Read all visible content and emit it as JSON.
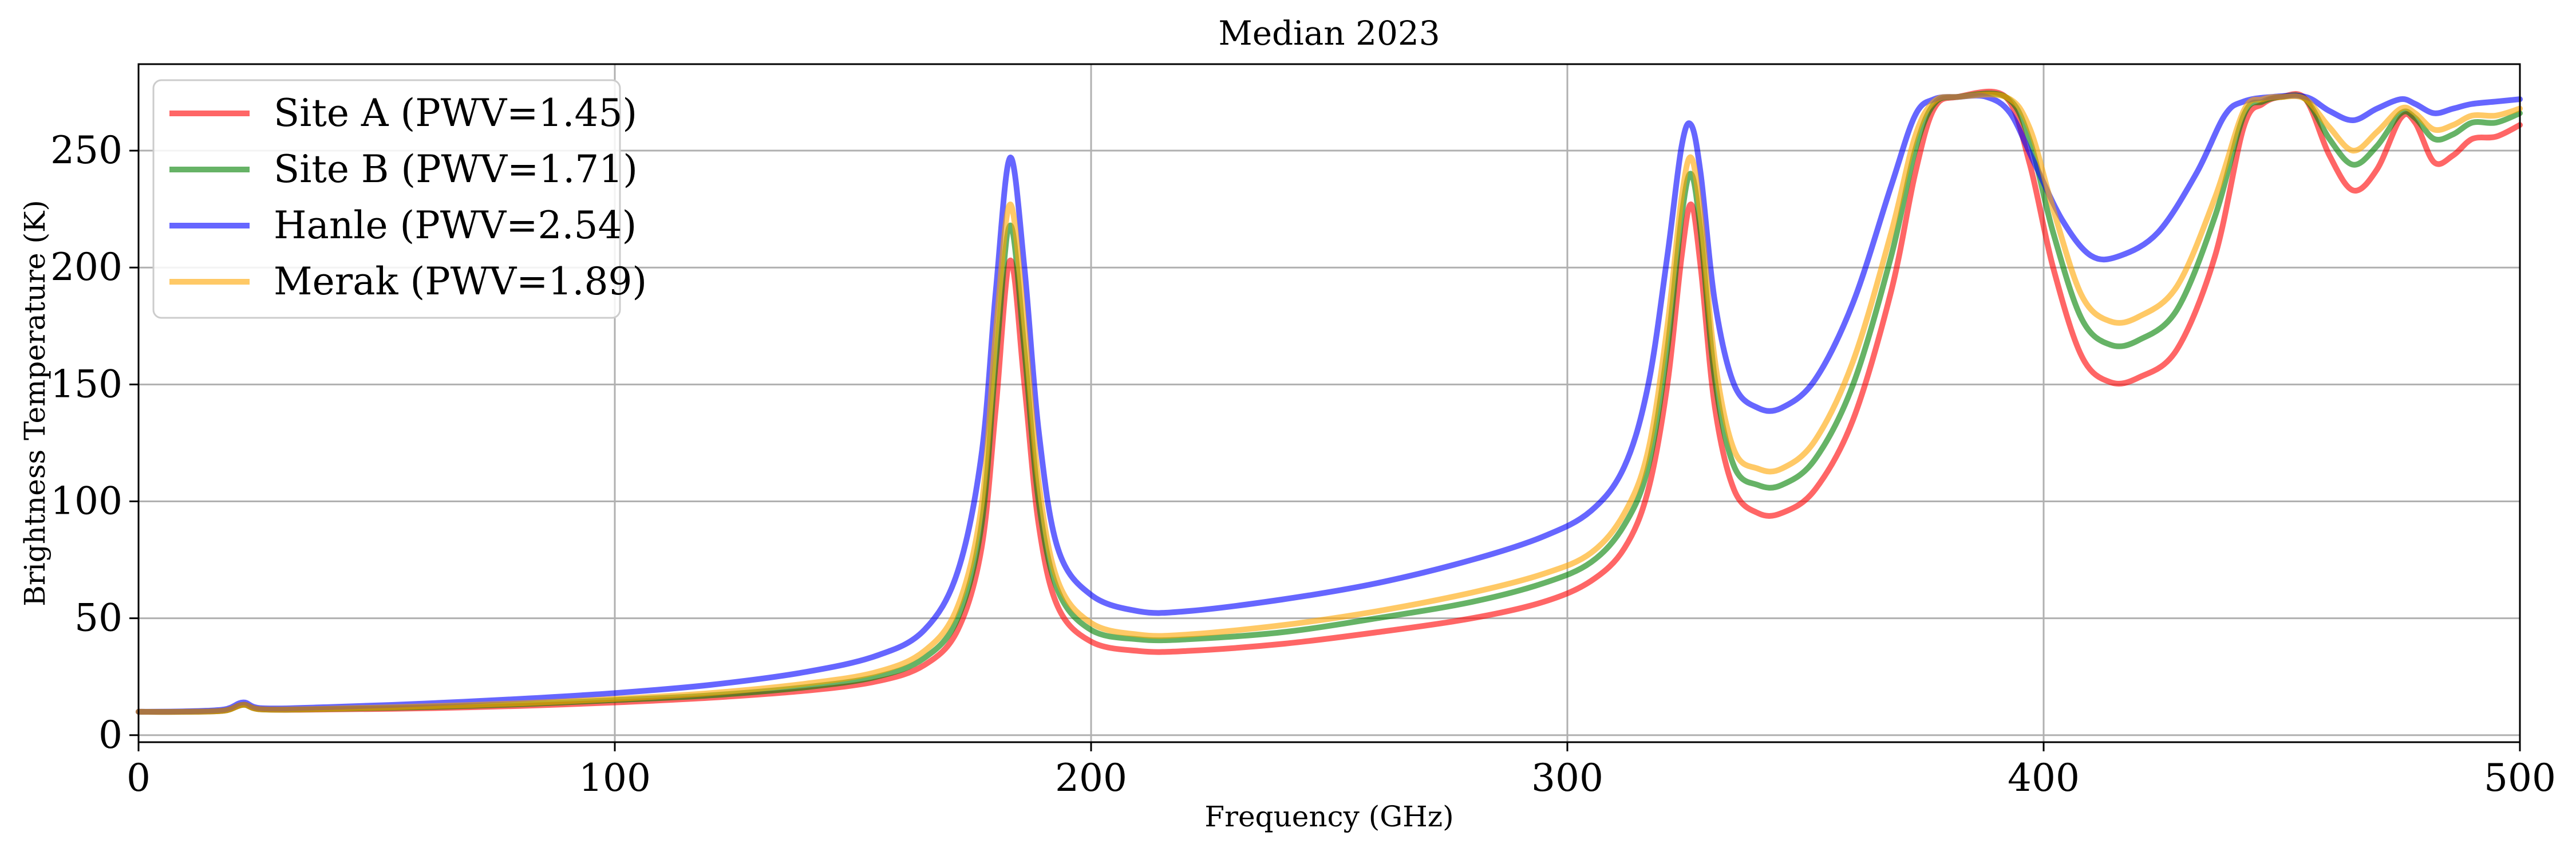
{
  "chart_data": {
    "type": "line",
    "title": "Median 2023",
    "xlabel": "Frequency (GHz)",
    "ylabel": "Brightness Temperature (K)",
    "xlim": [
      0,
      500
    ],
    "ylim": [
      -3,
      287
    ],
    "xticks": [
      0,
      100,
      200,
      300,
      400,
      500
    ],
    "yticks": [
      0,
      50,
      100,
      150,
      200,
      250
    ],
    "grid": true,
    "legend_position": "top-left",
    "series": [
      {
        "name": "Site A (PWV=1.45)",
        "color": "#ff0000",
        "points": [
          [
            0,
            10
          ],
          [
            10,
            10
          ],
          [
            18,
            10.5
          ],
          [
            22,
            13
          ],
          [
            26,
            11
          ],
          [
            40,
            11
          ],
          [
            60,
            11.5
          ],
          [
            80,
            12.5
          ],
          [
            100,
            14
          ],
          [
            120,
            16
          ],
          [
            140,
            19
          ],
          [
            155,
            23
          ],
          [
            165,
            30
          ],
          [
            172,
            45
          ],
          [
            177,
            80
          ],
          [
            180,
            140
          ],
          [
            183,
            203
          ],
          [
            186,
            150
          ],
          [
            189,
            90
          ],
          [
            193,
            55
          ],
          [
            200,
            40
          ],
          [
            210,
            36
          ],
          [
            220,
            36
          ],
          [
            240,
            39
          ],
          [
            260,
            44
          ],
          [
            280,
            50
          ],
          [
            295,
            57
          ],
          [
            305,
            66
          ],
          [
            312,
            80
          ],
          [
            317,
            105
          ],
          [
            321,
            150
          ],
          [
            324,
            205
          ],
          [
            326,
            227
          ],
          [
            328,
            200
          ],
          [
            331,
            140
          ],
          [
            335,
            105
          ],
          [
            340,
            95
          ],
          [
            345,
            95
          ],
          [
            352,
            105
          ],
          [
            360,
            135
          ],
          [
            368,
            190
          ],
          [
            373,
            240
          ],
          [
            377,
            268
          ],
          [
            382,
            273
          ],
          [
            392,
            273
          ],
          [
            397,
            245
          ],
          [
            402,
            200
          ],
          [
            408,
            162
          ],
          [
            414,
            151
          ],
          [
            420,
            153
          ],
          [
            428,
            165
          ],
          [
            436,
            205
          ],
          [
            442,
            260
          ],
          [
            446,
            270
          ],
          [
            450,
            273
          ],
          [
            455,
            272
          ],
          [
            460,
            248
          ],
          [
            465,
            233
          ],
          [
            470,
            242
          ],
          [
            475,
            264
          ],
          [
            478,
            262
          ],
          [
            482,
            245
          ],
          [
            486,
            248
          ],
          [
            490,
            255
          ],
          [
            495,
            256
          ],
          [
            500,
            261
          ]
        ]
      },
      {
        "name": "Site B (PWV=1.71)",
        "color": "#008000",
        "points": [
          [
            0,
            10
          ],
          [
            10,
            10
          ],
          [
            18,
            10.5
          ],
          [
            22,
            13
          ],
          [
            26,
            11
          ],
          [
            40,
            11.2
          ],
          [
            60,
            12
          ],
          [
            80,
            13.2
          ],
          [
            100,
            15
          ],
          [
            120,
            17
          ],
          [
            140,
            20.5
          ],
          [
            155,
            25
          ],
          [
            165,
            33
          ],
          [
            172,
            50
          ],
          [
            177,
            90
          ],
          [
            180,
            160
          ],
          [
            183,
            218
          ],
          [
            186,
            165
          ],
          [
            189,
            100
          ],
          [
            193,
            62
          ],
          [
            200,
            45
          ],
          [
            210,
            41
          ],
          [
            220,
            41
          ],
          [
            240,
            44
          ],
          [
            260,
            50
          ],
          [
            280,
            57
          ],
          [
            295,
            65
          ],
          [
            305,
            74
          ],
          [
            312,
            90
          ],
          [
            317,
            115
          ],
          [
            321,
            165
          ],
          [
            324,
            222
          ],
          [
            326,
            240
          ],
          [
            328,
            215
          ],
          [
            331,
            152
          ],
          [
            335,
            115
          ],
          [
            340,
            107
          ],
          [
            345,
            107
          ],
          [
            352,
            118
          ],
          [
            360,
            150
          ],
          [
            368,
            205
          ],
          [
            373,
            250
          ],
          [
            377,
            270
          ],
          [
            382,
            273
          ],
          [
            392,
            273
          ],
          [
            397,
            255
          ],
          [
            402,
            215
          ],
          [
            408,
            178
          ],
          [
            414,
            167
          ],
          [
            420,
            169
          ],
          [
            428,
            182
          ],
          [
            436,
            222
          ],
          [
            442,
            265
          ],
          [
            446,
            271
          ],
          [
            450,
            273
          ],
          [
            455,
            272
          ],
          [
            460,
            255
          ],
          [
            465,
            244
          ],
          [
            470,
            252
          ],
          [
            475,
            266
          ],
          [
            478,
            264
          ],
          [
            482,
            255
          ],
          [
            486,
            257
          ],
          [
            490,
            262
          ],
          [
            495,
            262
          ],
          [
            500,
            266
          ]
        ]
      },
      {
        "name": "Hanle (PWV=2.54)",
        "color": "#0000ff",
        "points": [
          [
            0,
            10
          ],
          [
            10,
            10.2
          ],
          [
            18,
            11
          ],
          [
            22,
            14
          ],
          [
            26,
            11.5
          ],
          [
            40,
            12
          ],
          [
            60,
            13.5
          ],
          [
            80,
            15.5
          ],
          [
            100,
            18
          ],
          [
            120,
            21.5
          ],
          [
            140,
            27
          ],
          [
            155,
            34
          ],
          [
            165,
            45
          ],
          [
            172,
            70
          ],
          [
            177,
            120
          ],
          [
            180,
            190
          ],
          [
            183,
            247
          ],
          [
            186,
            200
          ],
          [
            189,
            130
          ],
          [
            193,
            80
          ],
          [
            200,
            60
          ],
          [
            210,
            53
          ],
          [
            220,
            53
          ],
          [
            240,
            58
          ],
          [
            260,
            65
          ],
          [
            280,
            75
          ],
          [
            295,
            85
          ],
          [
            305,
            96
          ],
          [
            312,
            115
          ],
          [
            317,
            150
          ],
          [
            321,
            205
          ],
          [
            324,
            252
          ],
          [
            326,
            261
          ],
          [
            328,
            240
          ],
          [
            331,
            185
          ],
          [
            335,
            150
          ],
          [
            340,
            140
          ],
          [
            345,
            140
          ],
          [
            352,
            152
          ],
          [
            360,
            185
          ],
          [
            368,
            235
          ],
          [
            373,
            265
          ],
          [
            377,
            272
          ],
          [
            382,
            273
          ],
          [
            388,
            273
          ],
          [
            393,
            266
          ],
          [
            398,
            245
          ],
          [
            404,
            220
          ],
          [
            410,
            205
          ],
          [
            416,
            205
          ],
          [
            424,
            215
          ],
          [
            432,
            240
          ],
          [
            438,
            265
          ],
          [
            442,
            271
          ],
          [
            448,
            273
          ],
          [
            455,
            273
          ],
          [
            460,
            267
          ],
          [
            465,
            263
          ],
          [
            470,
            268
          ],
          [
            475,
            272
          ],
          [
            478,
            270
          ],
          [
            482,
            266
          ],
          [
            486,
            268
          ],
          [
            490,
            270
          ],
          [
            495,
            271
          ],
          [
            500,
            272
          ]
        ]
      },
      {
        "name": "Merak (PWV=1.89)",
        "color": "#ffa500",
        "points": [
          [
            0,
            10
          ],
          [
            10,
            10
          ],
          [
            18,
            10.5
          ],
          [
            22,
            13
          ],
          [
            26,
            11
          ],
          [
            40,
            11.3
          ],
          [
            60,
            12.3
          ],
          [
            80,
            13.6
          ],
          [
            100,
            15.5
          ],
          [
            120,
            18
          ],
          [
            140,
            22
          ],
          [
            155,
            27
          ],
          [
            165,
            36
          ],
          [
            172,
            55
          ],
          [
            177,
            98
          ],
          [
            180,
            172
          ],
          [
            183,
            227
          ],
          [
            186,
            175
          ],
          [
            189,
            108
          ],
          [
            193,
            66
          ],
          [
            200,
            48
          ],
          [
            210,
            43
          ],
          [
            220,
            43
          ],
          [
            240,
            47
          ],
          [
            260,
            53
          ],
          [
            280,
            61
          ],
          [
            295,
            69
          ],
          [
            305,
            78
          ],
          [
            312,
            95
          ],
          [
            317,
            122
          ],
          [
            321,
            175
          ],
          [
            324,
            230
          ],
          [
            326,
            247
          ],
          [
            328,
            222
          ],
          [
            331,
            160
          ],
          [
            335,
            122
          ],
          [
            340,
            114
          ],
          [
            345,
            114
          ],
          [
            352,
            126
          ],
          [
            360,
            160
          ],
          [
            368,
            215
          ],
          [
            373,
            256
          ],
          [
            377,
            271
          ],
          [
            382,
            273
          ],
          [
            392,
            273
          ],
          [
            397,
            260
          ],
          [
            402,
            225
          ],
          [
            408,
            188
          ],
          [
            414,
            177
          ],
          [
            420,
            179
          ],
          [
            428,
            192
          ],
          [
            436,
            230
          ],
          [
            442,
            267
          ],
          [
            446,
            272
          ],
          [
            450,
            273
          ],
          [
            455,
            272
          ],
          [
            460,
            260
          ],
          [
            465,
            250
          ],
          [
            470,
            258
          ],
          [
            475,
            268
          ],
          [
            478,
            266
          ],
          [
            482,
            259
          ],
          [
            486,
            261
          ],
          [
            490,
            265
          ],
          [
            495,
            265
          ],
          [
            500,
            268
          ]
        ]
      }
    ]
  }
}
